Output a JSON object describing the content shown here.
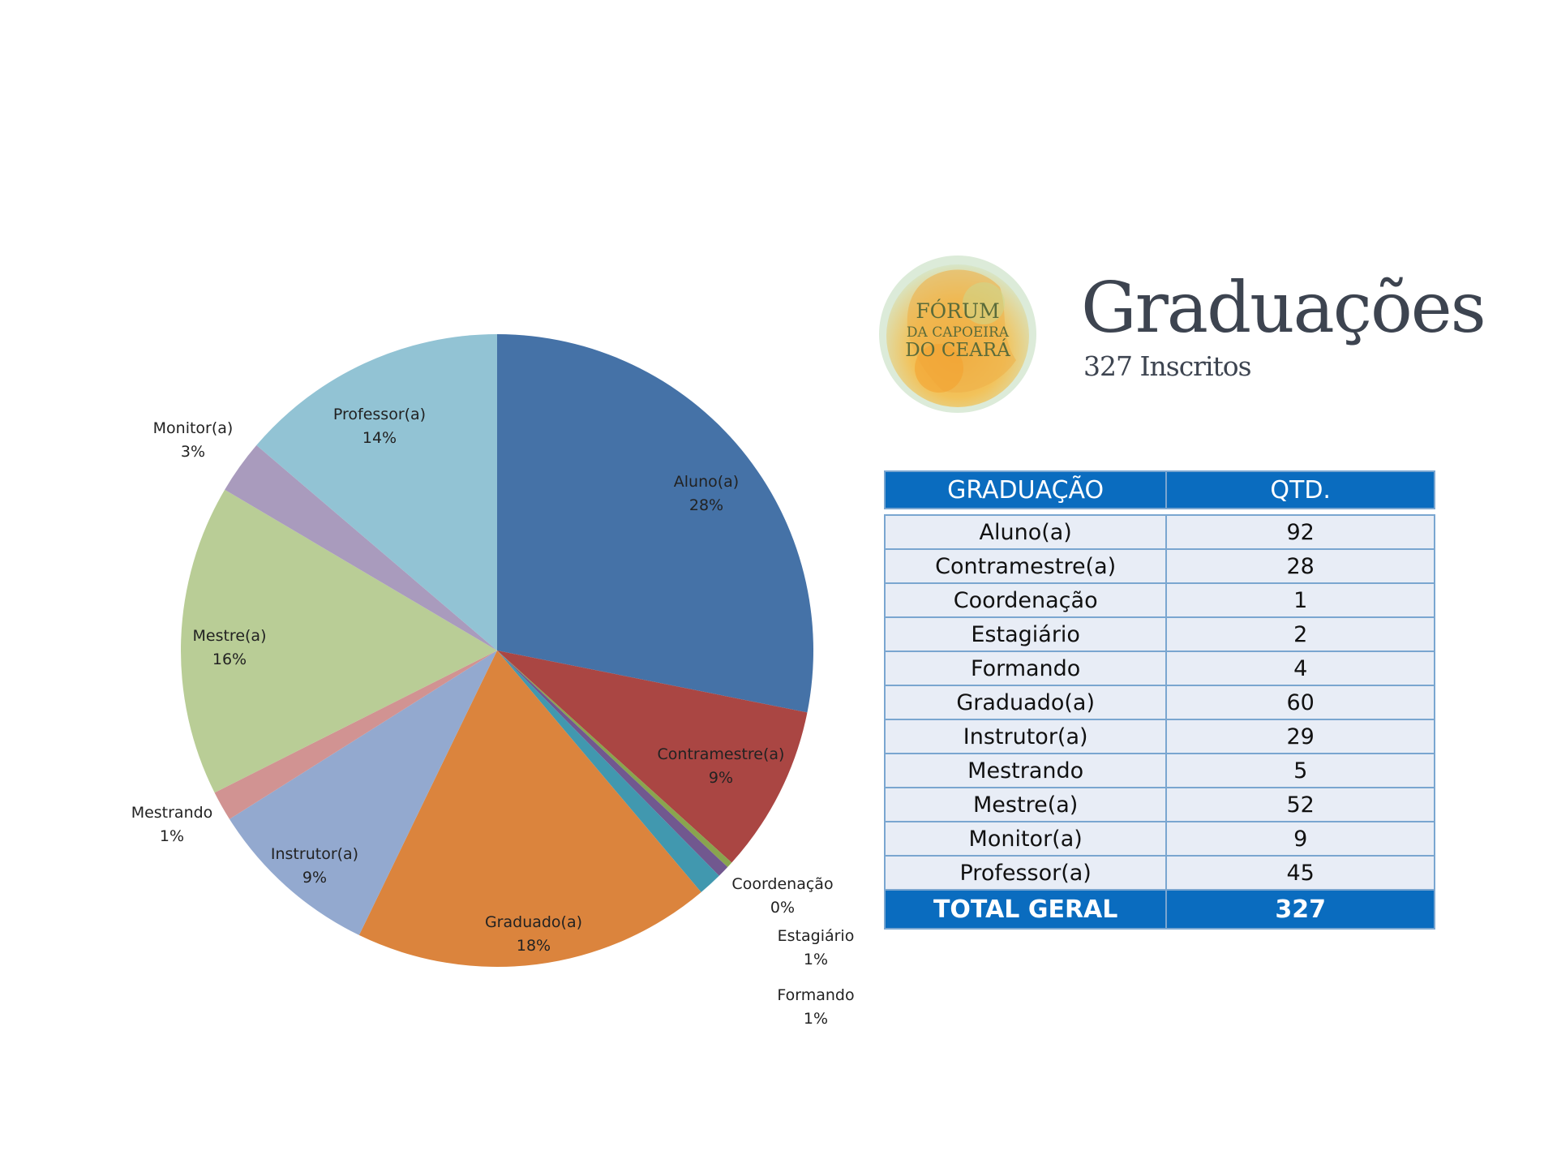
{
  "chart_data": {
    "type": "pie",
    "categories": [
      "Aluno(a)",
      "Contramestre(a)",
      "Coordenação",
      "Estagiário",
      "Formando",
      "Graduado(a)",
      "Instrutor(a)",
      "Mestrando",
      "Mestre(a)",
      "Monitor(a)",
      "Professor(a)"
    ],
    "values": [
      92,
      28,
      1,
      2,
      4,
      60,
      29,
      5,
      52,
      9,
      45
    ],
    "percent_labels": [
      "28%",
      "9%",
      "0%",
      "1%",
      "1%",
      "18%",
      "9%",
      "1%",
      "16%",
      "3%",
      "14%"
    ],
    "colors": [
      "#4572a7",
      "#aa4643",
      "#89a54e",
      "#71588f",
      "#4198af",
      "#db843d",
      "#93a9cf",
      "#d19392",
      "#b9cd96",
      "#a99bbd",
      "#92c3d4"
    ]
  },
  "logo": {
    "line1": "FÓRUM",
    "line2": "DA CAPOEIRA",
    "line3": "DO CEARÁ"
  },
  "header": {
    "title": "Graduações",
    "subtitle": "327 Inscritos"
  },
  "table": {
    "col_graduacao": "GRADUAÇÃO",
    "col_qtd": "QTD.",
    "rows": [
      {
        "graduacao": "Aluno(a)",
        "qtd": "92"
      },
      {
        "graduacao": "Contramestre(a)",
        "qtd": "28"
      },
      {
        "graduacao": "Coordenação",
        "qtd": "1"
      },
      {
        "graduacao": "Estagiário",
        "qtd": "2"
      },
      {
        "graduacao": "Formando",
        "qtd": "4"
      },
      {
        "graduacao": "Graduado(a)",
        "qtd": "60"
      },
      {
        "graduacao": "Instrutor(a)",
        "qtd": "29"
      },
      {
        "graduacao": "Mestrando",
        "qtd": "5"
      },
      {
        "graduacao": "Mestre(a)",
        "qtd": "52"
      },
      {
        "graduacao": "Monitor(a)",
        "qtd": "9"
      },
      {
        "graduacao": "Professor(a)",
        "qtd": "45"
      }
    ],
    "total_label": "TOTAL GERAL",
    "total_value": "327"
  }
}
